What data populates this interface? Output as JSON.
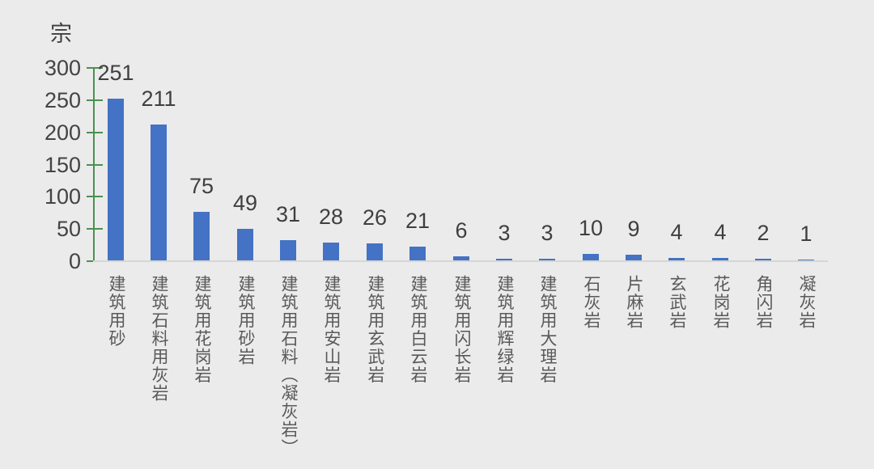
{
  "chart_data": {
    "type": "bar",
    "title": "",
    "unit_label": "宗",
    "categories": [
      "建筑用砂",
      "建筑石料用灰岩",
      "建筑用花岗岩",
      "建筑用砂岩",
      "建筑用石料（凝灰岩）",
      "建筑用安山岩",
      "建筑用玄武岩",
      "建筑用白云岩",
      "建筑用闪长岩",
      "建筑用辉绿岩",
      "建筑用大理岩",
      "石灰岩",
      "片麻岩",
      "玄武岩",
      "花岗岩",
      "角闪岩",
      "凝灰岩"
    ],
    "values": [
      251,
      211,
      75,
      49,
      31,
      28,
      26,
      21,
      6,
      3,
      3,
      10,
      9,
      4,
      4,
      2,
      1
    ],
    "xlabel": "",
    "ylabel": "宗",
    "ylim": [
      0,
      300
    ],
    "yticks": [
      0,
      50,
      100,
      150,
      200,
      250,
      300
    ],
    "grid": false,
    "legend_position": "none",
    "data_labels": true,
    "colors": {
      "background": "#ebebeb",
      "bar": "#4472c4",
      "y_axis": "#4a9150",
      "x_axis": "#d6d6d6",
      "value_text": "#3f3f3f",
      "tick_text": "#444444",
      "category_text": "#595959"
    }
  }
}
